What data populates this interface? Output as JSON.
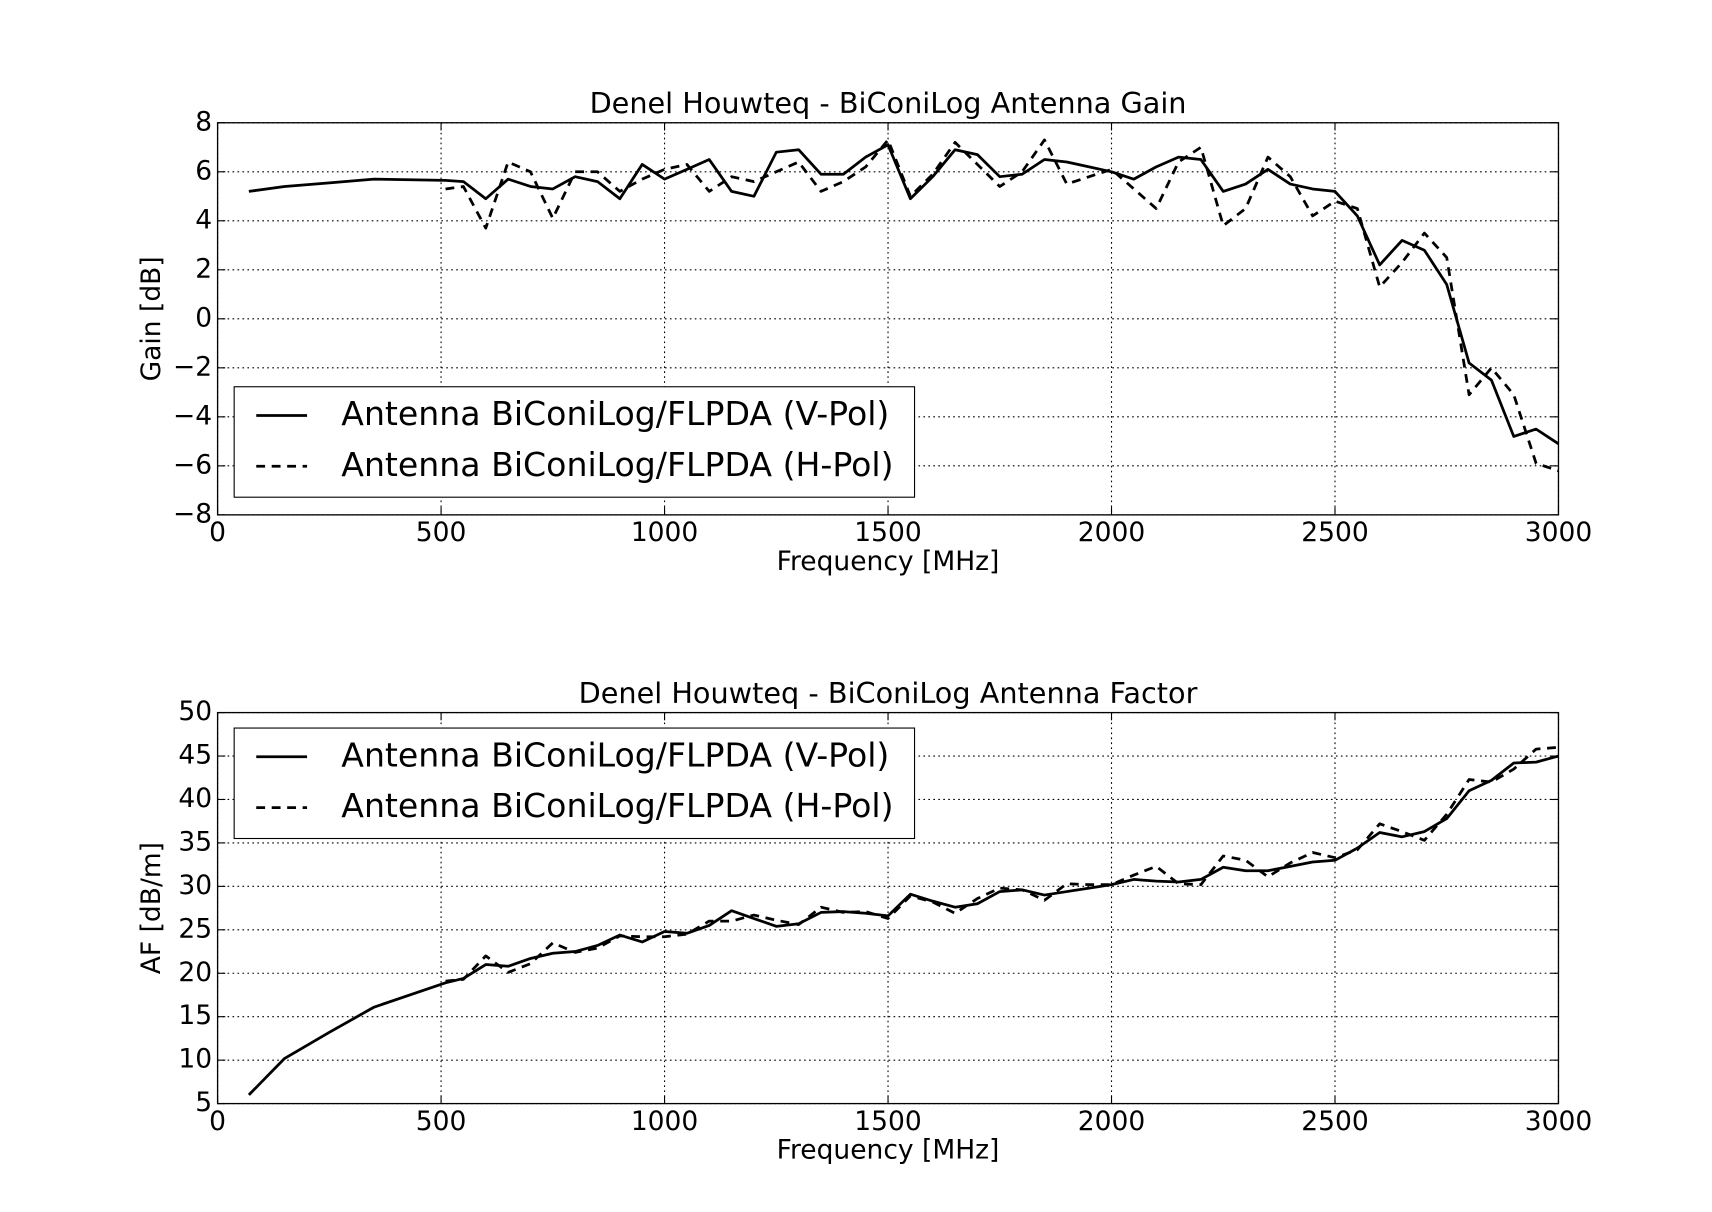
{
  "chart_data": [
    {
      "type": "line",
      "title": "Denel Houwteq - BiConiLog Antenna Gain",
      "x_label": "Frequency [MHz]",
      "y_label": "Gain [dB]",
      "x": [
        70,
        150,
        250,
        350,
        510,
        550,
        600,
        650,
        700,
        750,
        800,
        850,
        900,
        950,
        1000,
        1050,
        1100,
        1150,
        1200,
        1250,
        1300,
        1350,
        1400,
        1450,
        1500,
        1550,
        1600,
        1650,
        1700,
        1750,
        1800,
        1850,
        1900,
        1950,
        2000,
        2050,
        2100,
        2150,
        2200,
        2250,
        2300,
        2350,
        2400,
        2450,
        2500,
        2550,
        2600,
        2650,
        2700,
        2750,
        2800,
        2850,
        2900,
        2950,
        3000
      ],
      "series": [
        {
          "name": "Antenna BiConiLog/FLPDA (V-Pol)",
          "color": "#000000",
          "linestyle": "solid",
          "values": [
            5.2,
            5.4,
            5.55,
            5.7,
            5.65,
            5.6,
            4.9,
            5.7,
            5.4,
            5.3,
            5.8,
            5.6,
            4.9,
            6.3,
            5.7,
            6.1,
            6.5,
            5.2,
            5.0,
            6.8,
            6.9,
            5.9,
            5.9,
            6.6,
            7.1,
            4.9,
            5.8,
            6.9,
            6.7,
            5.8,
            5.9,
            6.5,
            6.4,
            6.2,
            6.0,
            5.7,
            6.2,
            6.6,
            6.5,
            5.2,
            5.5,
            6.1,
            5.5,
            5.3,
            5.2,
            4.2,
            2.2,
            3.2,
            2.8,
            1.4,
            -1.8,
            -2.5,
            -4.8,
            -4.5,
            -5.1
          ]
        },
        {
          "name": "Antenna BiConiLog/FLPDA (H-Pol)",
          "color": "#000000",
          "linestyle": "dashed",
          "values": [
            null,
            null,
            null,
            null,
            5.3,
            5.4,
            3.7,
            6.4,
            6.0,
            4.1,
            6.0,
            6.0,
            5.2,
            5.7,
            6.1,
            6.3,
            5.2,
            5.8,
            5.6,
            6.0,
            6.4,
            5.2,
            5.6,
            6.2,
            7.3,
            5.0,
            5.9,
            7.2,
            6.3,
            5.4,
            6.0,
            7.3,
            5.5,
            5.8,
            6.1,
            5.3,
            4.5,
            6.4,
            7.0,
            3.8,
            4.5,
            6.6,
            5.8,
            4.2,
            4.8,
            4.5,
            1.3,
            2.3,
            3.5,
            2.5,
            -3.1,
            -2.0,
            -3.1,
            -5.9,
            -6.2
          ]
        }
      ],
      "xlim": [
        0,
        3000
      ],
      "xticks": [
        0,
        500,
        1000,
        1500,
        2000,
        2500,
        3000
      ],
      "ylim": [
        -8,
        8
      ],
      "yticks": [
        {
          "value": -8,
          "label": "−8"
        },
        {
          "value": -6,
          "label": "−6"
        },
        {
          "value": -4,
          "label": "−4"
        },
        {
          "value": -2,
          "label": "−2"
        },
        0,
        2,
        4,
        6,
        8
      ],
      "grid": true,
      "legend": "lower left"
    },
    {
      "type": "line",
      "title": "Denel Houwteq - BiConiLog Antenna Factor",
      "x_label": "Frequency [MHz]",
      "y_label": "AF [dB/m]",
      "x": [
        70,
        150,
        250,
        350,
        510,
        550,
        600,
        650,
        700,
        750,
        800,
        850,
        900,
        950,
        1000,
        1050,
        1100,
        1150,
        1200,
        1250,
        1300,
        1350,
        1400,
        1450,
        1500,
        1550,
        1600,
        1650,
        1700,
        1750,
        1800,
        1850,
        1900,
        1950,
        2000,
        2050,
        2100,
        2150,
        2200,
        2250,
        2300,
        2350,
        2400,
        2450,
        2500,
        2550,
        2600,
        2650,
        2700,
        2750,
        2800,
        2850,
        2900,
        2950,
        3000
      ],
      "series": [
        {
          "name": "Antenna BiConiLog/FLPDA (V-Pol)",
          "color": "#000000",
          "linestyle": "solid",
          "values": [
            6,
            10.2,
            13.2,
            16.1,
            18.9,
            19.4,
            21.0,
            20.8,
            21.7,
            22.3,
            22.5,
            23.2,
            24.4,
            23.6,
            24.8,
            24.6,
            25.5,
            27.2,
            26.3,
            25.4,
            25.7,
            27.0,
            27.1,
            26.9,
            26.6,
            29.1,
            28.3,
            27.6,
            28.0,
            29.4,
            29.6,
            29.0,
            29.4,
            29.8,
            30.2,
            30.8,
            30.6,
            30.5,
            30.8,
            32.2,
            31.8,
            31.8,
            32.3,
            32.8,
            33.0,
            34.4,
            36.2,
            35.7,
            36.3,
            37.8,
            41.0,
            42.2,
            44.2,
            44.3,
            45.0
          ]
        },
        {
          "name": "Antenna BiConiLog/FLPDA (H-Pol)",
          "color": "#000000",
          "linestyle": "dashed",
          "values": [
            null,
            null,
            null,
            null,
            19.1,
            19.3,
            22.0,
            20.1,
            21.1,
            23.5,
            22.4,
            22.9,
            24.3,
            24.2,
            24.2,
            24.5,
            26.0,
            26.0,
            26.7,
            26.1,
            25.6,
            27.6,
            27.0,
            27.1,
            26.3,
            28.9,
            28.2,
            26.9,
            28.6,
            29.8,
            29.6,
            28.4,
            30.3,
            30.2,
            30.2,
            31.3,
            32.3,
            30.3,
            30.2,
            33.5,
            33.0,
            31.1,
            32.7,
            33.9,
            33.3,
            34.2,
            37.2,
            36.3,
            35.3,
            38.3,
            42.3,
            42.0,
            43.5,
            45.8,
            46.0
          ]
        }
      ],
      "xlim": [
        0,
        3000
      ],
      "xticks": [
        0,
        500,
        1000,
        1500,
        2000,
        2500,
        3000
      ],
      "ylim": [
        5,
        50
      ],
      "yticks": [
        5,
        10,
        15,
        20,
        25,
        30,
        35,
        40,
        45,
        50
      ],
      "grid": true,
      "legend": "upper left"
    }
  ]
}
